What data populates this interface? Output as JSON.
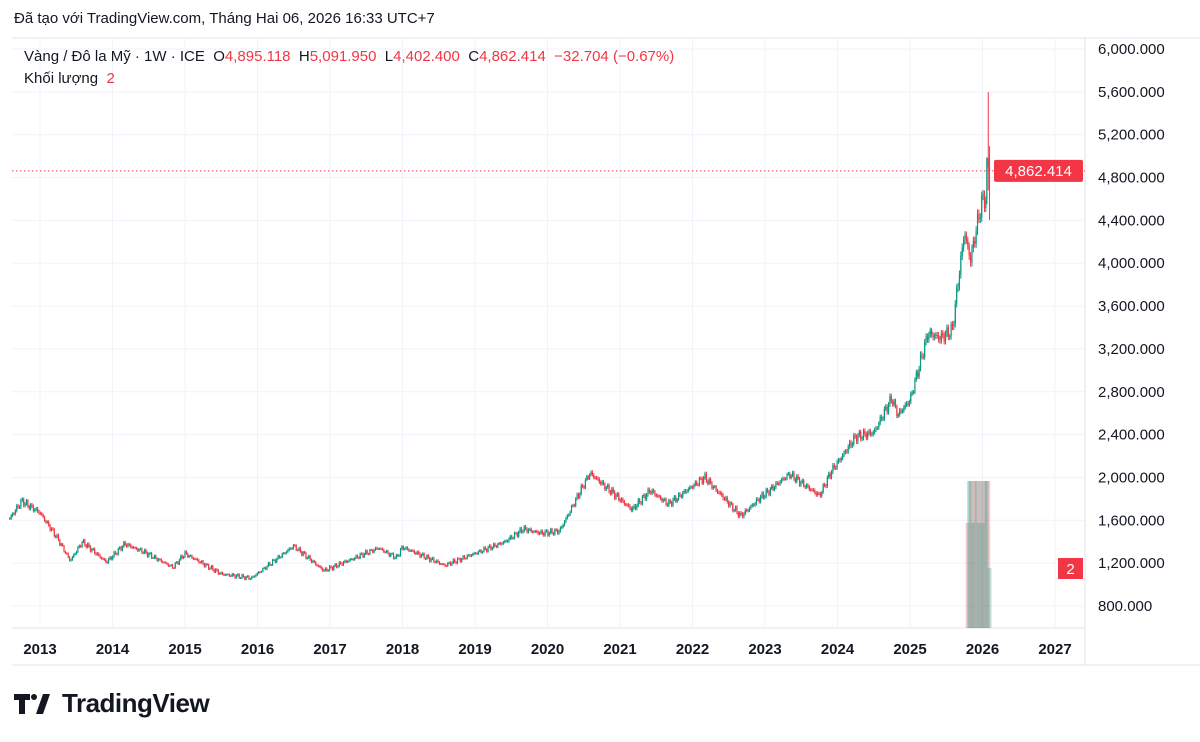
{
  "header": {
    "created_text": "Đã tạo với TradingView.com, Tháng Hai 06, 2026 16:33 UTC+7"
  },
  "legend": {
    "symbol": "Vàng / Đô la Mỹ · 1W · ICE",
    "open_label": "O",
    "open": "4,895.118",
    "high_label": "H",
    "high": "5,091.950",
    "low_label": "L",
    "low": "4,402.400",
    "close_label": "C",
    "close": "4,862.414",
    "change": "−32.704 (−0.67%)",
    "volume_label": "Khối lượng",
    "volume_value": "2"
  },
  "brand": {
    "name": "TradingView",
    "logo_icon": "tradingview-logo-icon"
  },
  "colors": {
    "up": "#089981",
    "down": "#f23645",
    "grid": "#f0f3fa",
    "text": "#131722"
  },
  "chart_data": {
    "type": "candlestick",
    "interval": "1W",
    "title": "Vàng / Đô la Mỹ · 1W · ICE",
    "ylim": [
      600,
      6100
    ],
    "y_ticks": [
      "800.000",
      "1,200.000",
      "1,600.000",
      "2,000.000",
      "2,400.000",
      "2,800.000",
      "3,200.000",
      "3,600.000",
      "4,000.000",
      "4,400.000",
      "4,800.000",
      "5,200.000",
      "5,600.000",
      "6,000.000"
    ],
    "y_tick_values": [
      800,
      1200,
      1600,
      2000,
      2400,
      2800,
      3200,
      3600,
      4000,
      4400,
      4800,
      5200,
      5600,
      6000
    ],
    "x_ticks": [
      "2013",
      "2014",
      "2015",
      "2016",
      "2017",
      "2018",
      "2019",
      "2020",
      "2021",
      "2022",
      "2023",
      "2024",
      "2025",
      "2026",
      "2027"
    ],
    "x_range": [
      "2012-08",
      "2027-05"
    ],
    "grid": true,
    "last_price": 4862.414,
    "last_price_label": "4,862.414",
    "price_path": [
      [
        "2012-08",
        1620
      ],
      [
        "2012-10",
        1780
      ],
      [
        "2013-01",
        1670
      ],
      [
        "2013-04",
        1420
      ],
      [
        "2013-06",
        1220
      ],
      [
        "2013-08",
        1400
      ],
      [
        "2013-12",
        1210
      ],
      [
        "2014-03",
        1380
      ],
      [
        "2014-06",
        1310
      ],
      [
        "2014-11",
        1160
      ],
      [
        "2015-01",
        1290
      ],
      [
        "2015-07",
        1100
      ],
      [
        "2015-12",
        1060
      ],
      [
        "2016-07",
        1360
      ],
      [
        "2016-12",
        1130
      ],
      [
        "2017-09",
        1340
      ],
      [
        "2017-12",
        1250
      ],
      [
        "2018-01",
        1350
      ],
      [
        "2018-08",
        1180
      ],
      [
        "2019-06",
        1400
      ],
      [
        "2019-09",
        1520
      ],
      [
        "2019-12",
        1480
      ],
      [
        "2020-03",
        1500
      ],
      [
        "2020-08",
        2040
      ],
      [
        "2021-03",
        1700
      ],
      [
        "2021-06",
        1880
      ],
      [
        "2021-09",
        1750
      ],
      [
        "2022-03",
        2000
      ],
      [
        "2022-09",
        1640
      ],
      [
        "2022-12",
        1800
      ],
      [
        "2023-05",
        2030
      ],
      [
        "2023-10",
        1830
      ],
      [
        "2023-12",
        2060
      ],
      [
        "2024-04",
        2380
      ],
      [
        "2024-07",
        2420
      ],
      [
        "2024-10",
        2740
      ],
      [
        "2024-11",
        2580
      ],
      [
        "2025-01",
        2720
      ],
      [
        "2025-04",
        3350
      ],
      [
        "2025-06",
        3300
      ],
      [
        "2025-08",
        3380
      ],
      [
        "2025-10",
        4300
      ],
      [
        "2025-11",
        4030
      ],
      [
        "2025-12",
        4330
      ],
      [
        "2026-01",
        4600
      ]
    ],
    "last_candles": [
      {
        "date": "2026-01-23",
        "o": 4600,
        "h": 4990,
        "l": 4550,
        "c": 4980
      },
      {
        "date": "2026-01-30",
        "o": 4980,
        "h": 5598,
        "l": 4680,
        "c": 4895
      },
      {
        "date": "2026-02-06",
        "o": 4895.118,
        "h": 5091.95,
        "l": 4402.4,
        "c": 4862.414
      }
    ],
    "volume": {
      "label": "Khối lượng",
      "last": 2,
      "last_label": "2",
      "bars": [
        [
          "2025-10-17",
          3.5
        ],
        [
          "2025-10-24",
          4.9
        ],
        [
          "2025-10-31",
          4.9
        ],
        [
          "2025-11-07",
          4.9
        ],
        [
          "2025-11-14",
          3.5
        ],
        [
          "2025-11-21",
          4.9
        ],
        [
          "2025-11-28",
          4.9
        ],
        [
          "2025-12-05",
          4.9
        ],
        [
          "2025-12-12",
          3.5
        ],
        [
          "2025-12-19",
          4.9
        ],
        [
          "2025-12-26",
          4.9
        ],
        [
          "2026-01-02",
          3.5
        ],
        [
          "2026-01-09",
          4.9
        ],
        [
          "2026-01-16",
          4.9
        ],
        [
          "2026-01-23",
          4.9
        ],
        [
          "2026-01-30",
          4.9
        ],
        [
          "2026-02-06",
          2
        ]
      ],
      "max": 5
    }
  }
}
